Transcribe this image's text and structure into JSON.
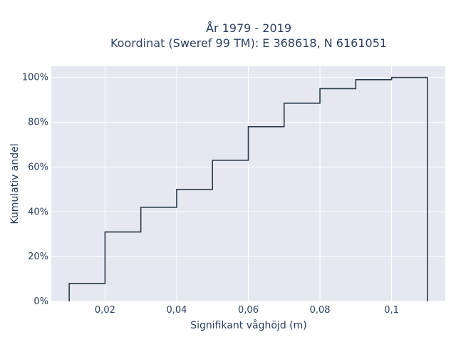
{
  "chart_data": {
    "type": "line",
    "title_line1": "År 1979 - 2019",
    "title_line2": "Koordinat (Sweref 99 TM): E 368618, N 6161051",
    "xlabel": "Signifikant våghöjd (m)",
    "ylabel": "Kumulativ andel",
    "xlim": [
      0.005,
      0.115
    ],
    "ylim": [
      0,
      1.05
    ],
    "x_ticks": [
      0.02,
      0.04,
      0.06,
      0.08,
      0.1
    ],
    "x_tick_labels": [
      "0,02",
      "0,04",
      "0,06",
      "0,08",
      "0,1"
    ],
    "y_ticks": [
      0,
      0.2,
      0.4,
      0.6,
      0.8,
      1.0
    ],
    "y_tick_labels": [
      "0%",
      "20%",
      "40%",
      "60%",
      "80%",
      "100%"
    ],
    "grid": true,
    "line_color": "#2b3a4a",
    "plot_bg": "#e5e8f0",
    "series": [
      {
        "bin_edges": [
          0.01,
          0.02,
          0.03,
          0.04,
          0.05,
          0.06,
          0.07,
          0.08,
          0.09,
          0.1,
          0.11
        ],
        "cumulative": [
          0.08,
          0.31,
          0.42,
          0.5,
          0.63,
          0.78,
          0.885,
          0.95,
          0.99,
          1.0
        ]
      }
    ]
  }
}
